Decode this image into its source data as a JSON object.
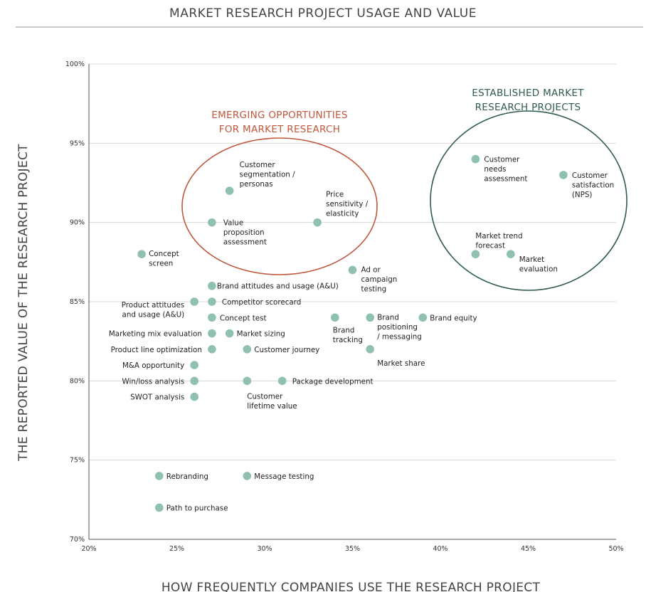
{
  "page": {
    "title": "MARKET RESEARCH PROJECT USAGE AND VALUE"
  },
  "colors": {
    "point": "#8fc1ae",
    "emerging": "#c0573d",
    "established": "#2f5c4c",
    "grid": "#d9d9d9",
    "axis": "#555555"
  },
  "chart_data": {
    "type": "scatter",
    "title": "MARKET RESEARCH PROJECT USAGE AND VALUE",
    "xlabel": "HOW FREQUENTLY COMPANIES USE THE RESEARCH PROJECT",
    "ylabel": "THE REPORTED VALUE OF THE RESEARCH PROJECT",
    "xlim": [
      20,
      50
    ],
    "ylim": [
      70,
      100
    ],
    "x_ticks": [
      20,
      25,
      30,
      35,
      40,
      45,
      50
    ],
    "y_ticks": [
      70,
      75,
      80,
      85,
      90,
      95,
      100
    ],
    "x_tick_labels": [
      "20%",
      "25%",
      "30%",
      "35%",
      "40%",
      "45%",
      "50%"
    ],
    "y_tick_labels": [
      "70%",
      "75%",
      "80%",
      "85%",
      "90%",
      "95%",
      "100%"
    ],
    "grid": "horizontal",
    "groups": [
      {
        "name": "EMERGING OPPORTUNITIES FOR MARKET RESEARCH",
        "lines": [
          "EMERGING OPPORTUNITIES",
          "FOR MARKET RESEARCH"
        ],
        "color": "#c0573d"
      },
      {
        "name": "ESTABLISHED MARKET RESEARCH PROJECTS",
        "lines": [
          "ESTABLISHED MARKET",
          "RESEARCH PROJECTS"
        ],
        "color": "#2f5c4c"
      }
    ],
    "points": [
      {
        "label": "Customer segmentation / personas",
        "lines": [
          "Customer",
          "segmentation /",
          "personas"
        ],
        "x": 28,
        "y": 92
      },
      {
        "label": "Value proposition assessment",
        "lines": [
          "Value",
          "proposition",
          "assessment"
        ],
        "x": 27,
        "y": 90
      },
      {
        "label": "Price sensitivity / elasticity",
        "lines": [
          "Price",
          "sensitivity /",
          "elasticity"
        ],
        "x": 33,
        "y": 90
      },
      {
        "label": "Customer needs assessment",
        "lines": [
          "Customer",
          "needs",
          "assessment"
        ],
        "x": 42,
        "y": 94
      },
      {
        "label": "Customer satisfaction (NPS)",
        "lines": [
          "Customer",
          "satisfaction",
          "(NPS)"
        ],
        "x": 47,
        "y": 93
      },
      {
        "label": "Market trend forecast",
        "lines": [
          "Market trend",
          "forecast"
        ],
        "x": 42,
        "y": 88
      },
      {
        "label": "Market evaluation",
        "lines": [
          "Market",
          "evaluation"
        ],
        "x": 44,
        "y": 88
      },
      {
        "label": "Concept screen",
        "lines": [
          "Concept",
          "screen"
        ],
        "x": 23,
        "y": 88
      },
      {
        "label": "Ad or campaign testing",
        "lines": [
          "Ad or",
          "campaign",
          "testing"
        ],
        "x": 35,
        "y": 87
      },
      {
        "label": "Brand attitudes and usage (A&U)",
        "lines": [
          "Brand attitudes and usage (A&U)"
        ],
        "x": 27,
        "y": 86
      },
      {
        "label": "Product attitudes and usage (A&U)",
        "lines": [
          "Product attitudes",
          "and usage (A&U)"
        ],
        "x": 26,
        "y": 85
      },
      {
        "label": "Competitor scorecard",
        "lines": [
          "Competitor scorecard"
        ],
        "x": 27,
        "y": 85
      },
      {
        "label": "Concept test",
        "lines": [
          "Concept test"
        ],
        "x": 27,
        "y": 84
      },
      {
        "label": "Brand tracking",
        "lines": [
          "Brand",
          "tracking"
        ],
        "x": 34,
        "y": 84
      },
      {
        "label": "Brand positioning / messaging",
        "lines": [
          "Brand",
          "positioning",
          "/ messaging"
        ],
        "x": 36,
        "y": 84
      },
      {
        "label": "Brand equity",
        "lines": [
          "Brand equity"
        ],
        "x": 39,
        "y": 84
      },
      {
        "label": "Marketing mix evaluation",
        "lines": [
          "Marketing mix evaluation"
        ],
        "x": 27,
        "y": 83
      },
      {
        "label": "Market sizing",
        "lines": [
          "Market sizing"
        ],
        "x": 28,
        "y": 83
      },
      {
        "label": "Product line optimization",
        "lines": [
          "Product line optimization"
        ],
        "x": 27,
        "y": 82
      },
      {
        "label": "Customer journey",
        "lines": [
          "Customer journey"
        ],
        "x": 29,
        "y": 82
      },
      {
        "label": "Market share",
        "lines": [
          "Market share"
        ],
        "x": 36,
        "y": 82
      },
      {
        "label": "M&A opportunity",
        "lines": [
          "M&A opportunity"
        ],
        "x": 26,
        "y": 81
      },
      {
        "label": "Win/loss analysis",
        "lines": [
          "Win/loss analysis"
        ],
        "x": 26,
        "y": 80
      },
      {
        "label": "Customer lifetime value",
        "lines": [
          "Customer",
          "lifetime value"
        ],
        "x": 29,
        "y": 80
      },
      {
        "label": "Package development",
        "lines": [
          "Package development"
        ],
        "x": 31,
        "y": 80
      },
      {
        "label": "SWOT analysis",
        "lines": [
          "SWOT analysis"
        ],
        "x": 26,
        "y": 79
      },
      {
        "label": "Rebranding",
        "lines": [
          "Rebranding"
        ],
        "x": 24,
        "y": 74
      },
      {
        "label": "Message testing",
        "lines": [
          "Message testing"
        ],
        "x": 29,
        "y": 74
      },
      {
        "label": "Path to purchase",
        "lines": [
          "Path to purchase"
        ],
        "x": 24,
        "y": 72
      }
    ]
  }
}
